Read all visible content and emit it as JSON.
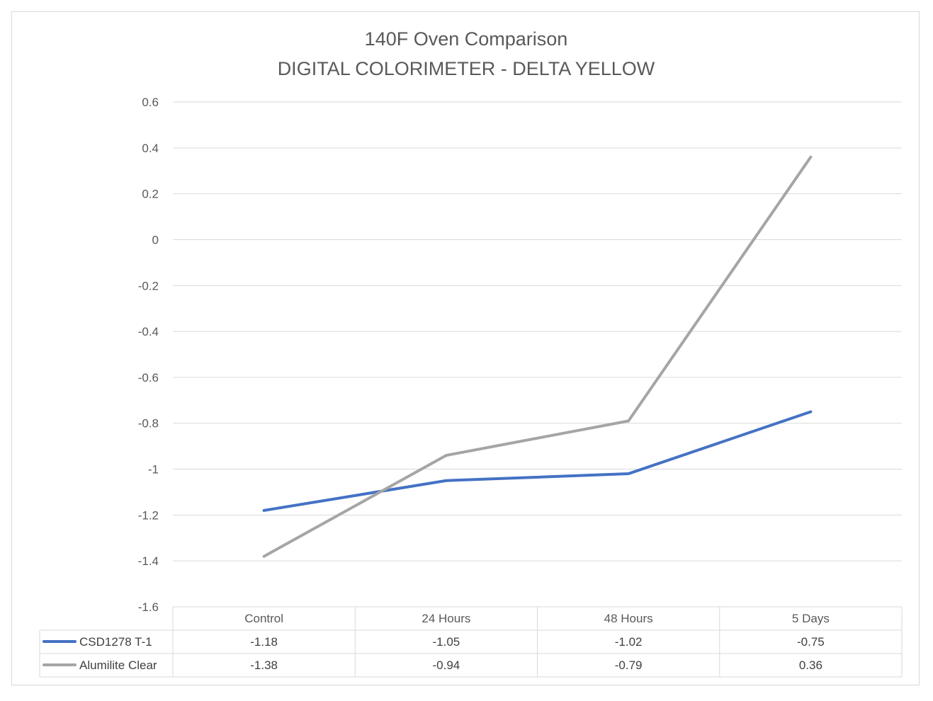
{
  "chart_data": {
    "type": "line",
    "title": "140F Oven Comparison",
    "subtitle": "DIGITAL COLORIMETER - DELTA YELLOW",
    "xlabel": "",
    "ylabel": "",
    "categories": [
      "Control",
      "24 Hours",
      "48 Hours",
      "5 Days"
    ],
    "ylim": [
      -1.6,
      0.6
    ],
    "yticks": [
      0.6,
      0.4,
      0.2,
      0,
      -0.2,
      -0.4,
      -0.6,
      -0.8,
      -1,
      -1.2,
      -1.4,
      -1.6
    ],
    "grid": true,
    "legend": "data table",
    "series": [
      {
        "name": "CSD1278 T-1",
        "color": "#4472c4",
        "values": [
          -1.18,
          -1.05,
          -1.02,
          -0.75
        ],
        "labels": [
          "-1.18",
          "-1.05",
          "-1.02",
          "-0.75"
        ]
      },
      {
        "name": "Alumilite Clear",
        "color": "#a5a5a5",
        "values": [
          -1.38,
          -0.94,
          -0.79,
          0.36
        ],
        "labels": [
          "-1.38",
          "-0.94",
          "-0.79",
          "0.36"
        ]
      }
    ]
  }
}
